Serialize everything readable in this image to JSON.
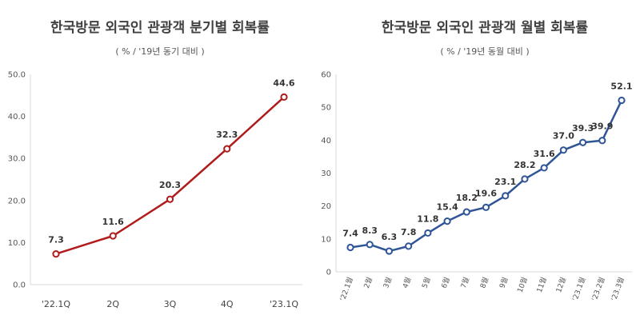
{
  "chart_data": [
    {
      "type": "line",
      "title": "한국방문 외국인 관광객 분기별 회복률",
      "subtitle": "( % / '19년 동기 대비 )",
      "categories": [
        "'22.1Q",
        "2Q",
        "3Q",
        "4Q",
        "'23.1Q"
      ],
      "series": [
        {
          "values": [
            7.3,
            11.6,
            20.3,
            32.3,
            44.6
          ],
          "labels": [
            "7.3",
            "11.6",
            "20.3",
            "32.3",
            "44.6"
          ]
        }
      ],
      "ylim": [
        0,
        50
      ],
      "yticks": [
        "0.0",
        "10.0",
        "20.0",
        "30.0",
        "40.0",
        "50.0"
      ],
      "color": "#b01c1c",
      "grid": false,
      "legend": "none"
    },
    {
      "type": "line",
      "title": "한국방문 외국인 관광객 월별 회복률",
      "subtitle": "( % / '19년 동월 대비 )",
      "categories": [
        "'22.1월",
        "2월",
        "3월",
        "4월",
        "5월",
        "6월",
        "7월",
        "8월",
        "9월",
        "10월",
        "11월",
        "12월",
        "'23.1월",
        "'23.2월",
        "'23.3월"
      ],
      "series": [
        {
          "values": [
            7.4,
            8.3,
            6.3,
            7.8,
            11.8,
            15.4,
            18.2,
            19.6,
            23.1,
            28.2,
            31.6,
            37.0,
            39.3,
            39.9,
            52.1
          ],
          "labels": [
            "7.4",
            "8.3",
            "6.3",
            "7.8",
            "11.8",
            "15.4",
            "18.2",
            "19.6",
            "23.1",
            "28.2",
            "31.6",
            "37.0",
            "39.3",
            "39.9",
            "52.1"
          ]
        }
      ],
      "ylim": [
        0,
        60
      ],
      "yticks": [
        "0",
        "10",
        "20",
        "30",
        "40",
        "50",
        "60"
      ],
      "color": "#2f5597",
      "grid": false,
      "legend": "none"
    }
  ]
}
